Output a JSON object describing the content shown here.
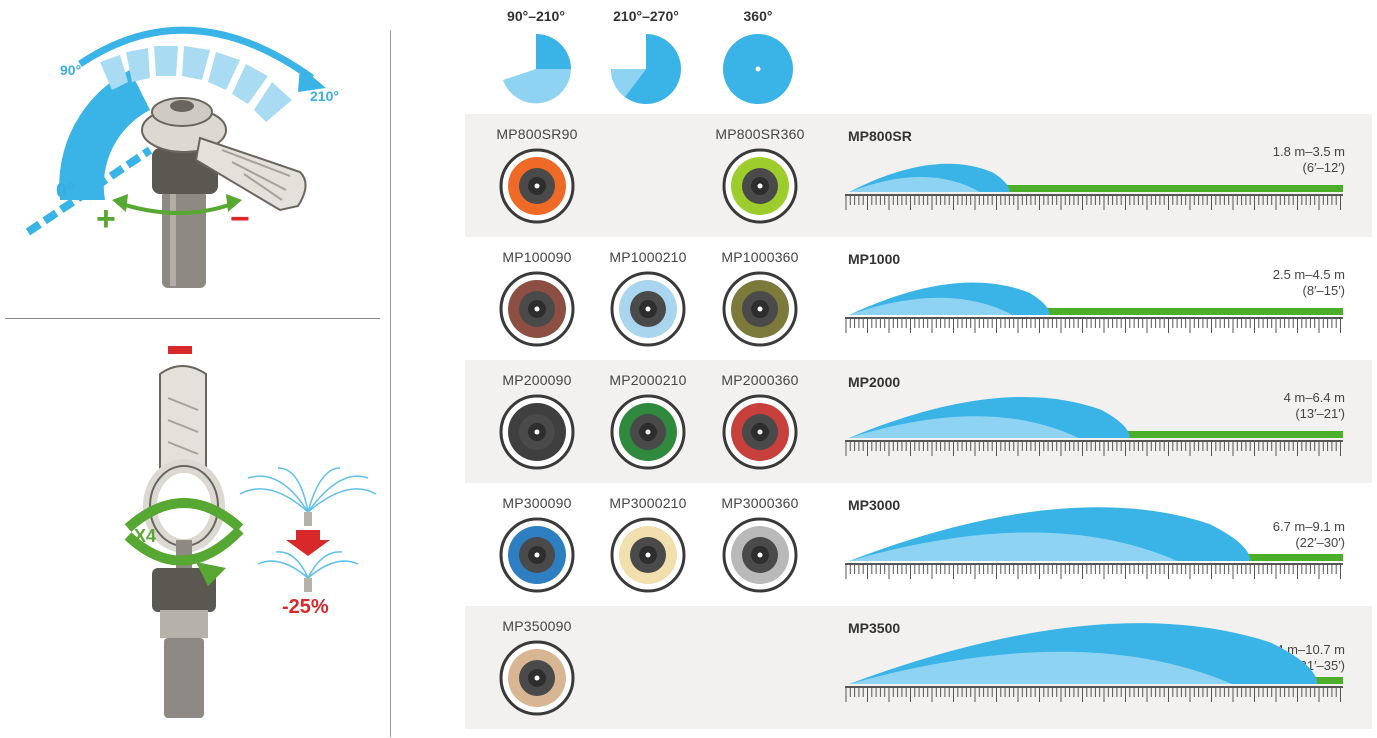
{
  "adjust_panel": {
    "label_90": "90°",
    "label_210": "210°",
    "label_0": "0°",
    "plus": "+",
    "minus": "−"
  },
  "reduce_panel": {
    "minus": "−",
    "turns": "X4",
    "reduction": "-25%"
  },
  "arc_headers": [
    {
      "label": "90°–210°",
      "icon": "partial-arc-small-icon"
    },
    {
      "label": "210°–270°",
      "icon": "partial-arc-large-icon"
    },
    {
      "label": "360°",
      "icon": "full-circle-icon"
    }
  ],
  "rows": [
    {
      "series": "MP800SR",
      "range_m": "1.8 m–3.5 m",
      "range_ft": "(6′–12′)",
      "throw_max_ft": 12,
      "nozzles": [
        {
          "label": "MP800SR90",
          "col": 0,
          "color": "#ee6a26"
        },
        {
          "label": "MP800SR360",
          "col": 2,
          "color": "#9ccd2c"
        }
      ]
    },
    {
      "series": "MP1000",
      "range_m": "2.5 m–4.5 m",
      "range_ft": "(8′–15′)",
      "throw_max_ft": 15,
      "nozzles": [
        {
          "label": "MP100090",
          "col": 0,
          "color": "#8d4f43"
        },
        {
          "label": "MP1000210",
          "col": 1,
          "color": "#a9d6ee"
        },
        {
          "label": "MP1000360",
          "col": 2,
          "color": "#7c7a3a"
        }
      ]
    },
    {
      "series": "MP2000",
      "range_m": "4 m–6.4 m",
      "range_ft": "(13′–21′)",
      "throw_max_ft": 21,
      "nozzles": [
        {
          "label": "MP200090",
          "col": 0,
          "color": "#3f3f3f"
        },
        {
          "label": "MP2000210",
          "col": 1,
          "color": "#2f8a3e"
        },
        {
          "label": "MP2000360",
          "col": 2,
          "color": "#c8403c"
        }
      ]
    },
    {
      "series": "MP3000",
      "range_m": "6.7 m–9.1 m",
      "range_ft": "(22′–30′)",
      "throw_max_ft": 30,
      "nozzles": [
        {
          "label": "MP300090",
          "col": 0,
          "color": "#2d7fc2"
        },
        {
          "label": "MP3000210",
          "col": 1,
          "color": "#f2dfae"
        },
        {
          "label": "MP3000360",
          "col": 2,
          "color": "#b9b9b9"
        }
      ]
    },
    {
      "series": "MP3500",
      "range_m": "9.4 m–10.7 m",
      "range_ft": "(31′–35′)",
      "throw_max_ft": 35,
      "nozzles": [
        {
          "label": "MP350090",
          "col": 0,
          "color": "#d8b693"
        }
      ]
    }
  ],
  "colors": {
    "water_dark": "#3ab4e6",
    "water_light": "#8fd3f2",
    "grass": "#4caf2a",
    "accent_red": "#d9282a",
    "accent_green": "#56a832",
    "row_bg": "#f2f1ef"
  }
}
